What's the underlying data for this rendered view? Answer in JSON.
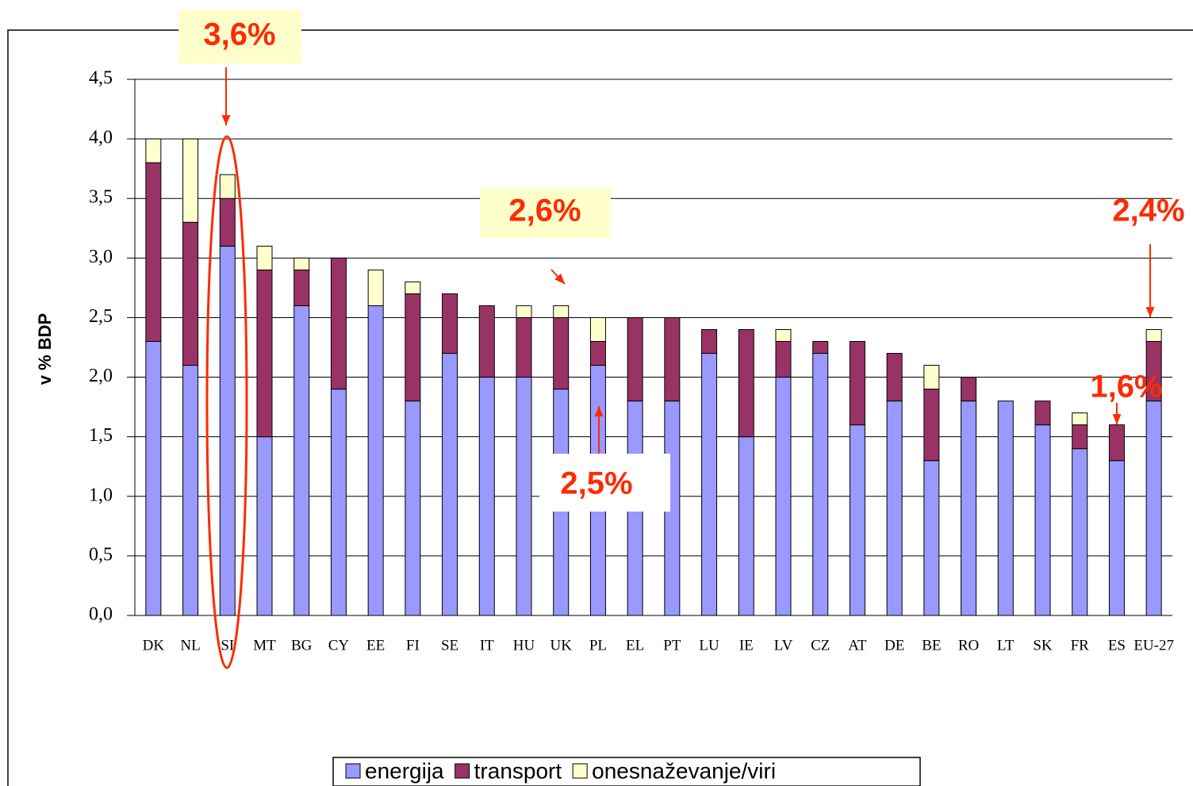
{
  "chart_data": {
    "type": "bar",
    "stacked": true,
    "y_label": "v % BDP",
    "categories": [
      "DK",
      "NL",
      "SI",
      "MT",
      "BG",
      "CY",
      "EE",
      "FI",
      "SE",
      "IT",
      "HU",
      "UK",
      "PL",
      "EL",
      "PT",
      "LU",
      "IE",
      "LV",
      "CZ",
      "AT",
      "DE",
      "BE",
      "RO",
      "LT",
      "SK",
      "FR",
      "ES",
      "EU-27"
    ],
    "series": [
      {
        "name": "energija",
        "color": "#9999ff",
        "values": [
          2.3,
          2.1,
          3.1,
          1.5,
          2.6,
          1.9,
          2.6,
          1.8,
          2.2,
          2.0,
          2.0,
          1.9,
          2.1,
          1.8,
          1.8,
          2.2,
          1.5,
          2.0,
          2.2,
          1.6,
          1.8,
          1.3,
          1.8,
          1.8,
          1.6,
          1.4,
          1.3,
          1.8
        ]
      },
      {
        "name": "transport",
        "color": "#993366",
        "values": [
          1.5,
          1.2,
          0.4,
          1.4,
          0.3,
          1.1,
          0,
          0.9,
          0.5,
          0.6,
          0.5,
          0.6,
          0.2,
          0.7,
          0.7,
          0.2,
          0.9,
          0.3,
          0.1,
          0.7,
          0.4,
          0.6,
          0.2,
          0,
          0.2,
          0.2,
          0.3,
          0.5
        ]
      },
      {
        "name": "onesnaževanje/viri",
        "color": "#ffffcc",
        "values": [
          0.2,
          0.7,
          0.2,
          0.2,
          0.1,
          0,
          0.3,
          0.1,
          0,
          0,
          0.1,
          0.1,
          0.2,
          0,
          0,
          0,
          0,
          0.1,
          0,
          0,
          0,
          0.2,
          0,
          0,
          0,
          0.1,
          0,
          0.1
        ]
      }
    ],
    "ylim": [
      0,
      4.5
    ],
    "yticks": [
      {
        "value": 0,
        "label": "0,0"
      },
      {
        "value": 0.5,
        "label": "0,5"
      },
      {
        "value": 1,
        "label": "1,0"
      },
      {
        "value": 1.5,
        "label": "1,5"
      },
      {
        "value": 2,
        "label": "2,0"
      },
      {
        "value": 2.5,
        "label": "2,5"
      },
      {
        "value": 3,
        "label": "3,0"
      },
      {
        "value": 3.5,
        "label": "3,5"
      },
      {
        "value": 4,
        "label": "4,0"
      },
      {
        "value": 4.5,
        "label": "4,5"
      }
    ],
    "grid": true,
    "annotations": [
      "3,6%",
      "2,6%",
      "2,5%",
      "2,4%",
      "1,6%"
    ]
  }
}
